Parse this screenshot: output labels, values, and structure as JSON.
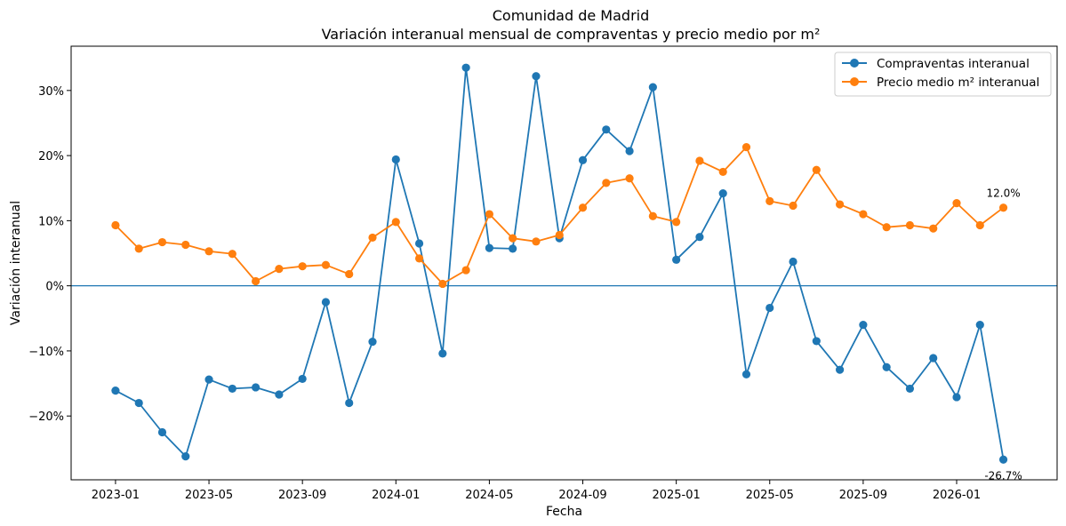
{
  "title": {
    "line1": "Comunidad de Madrid",
    "line2": "Variación interanual mensual de compraventas y precio medio por m²"
  },
  "chart_data": {
    "type": "line",
    "title": "Comunidad de Madrid / Variación interanual mensual de compraventas y precio medio por m²",
    "xlabel": "Fecha",
    "ylabel": "Variación interanual",
    "x": [
      "2023-01",
      "2023-02",
      "2023-03",
      "2023-04",
      "2023-05",
      "2023-06",
      "2023-07",
      "2023-08",
      "2023-09",
      "2023-10",
      "2023-11",
      "2023-12",
      "2024-01",
      "2024-02",
      "2024-03",
      "2024-04",
      "2024-05",
      "2024-06",
      "2024-07",
      "2024-08",
      "2024-09",
      "2024-10",
      "2024-11",
      "2024-12",
      "2025-01",
      "2025-02",
      "2025-03",
      "2025-04",
      "2025-05",
      "2025-06",
      "2025-07",
      "2025-08",
      "2025-09",
      "2025-10",
      "2025-11",
      "2025-12",
      "2026-01",
      "2026-02",
      "2026-03"
    ],
    "x_ticks": [
      "2023-01",
      "2023-05",
      "2023-09",
      "2024-01",
      "2024-05",
      "2024-09",
      "2025-01",
      "2025-05",
      "2025-09",
      "2026-01"
    ],
    "y_ticks": [
      -20,
      -10,
      0,
      10,
      20,
      30
    ],
    "y_tick_labels": [
      "−20%",
      "−10%",
      "0%",
      "10%",
      "20%",
      "30%"
    ],
    "ylim": [
      -29.8,
      36.8
    ],
    "x_range_months": [
      -1.9,
      40.3
    ],
    "reference_line": 0,
    "grid": false,
    "legend_position": "top-right",
    "series": [
      {
        "name": "Compraventas interanual",
        "color": "#1f77b4",
        "values": [
          -16.1,
          -18.0,
          -22.5,
          -26.2,
          -14.4,
          -15.8,
          -15.6,
          -16.7,
          -14.3,
          -2.5,
          -18.0,
          -8.6,
          19.4,
          6.5,
          -10.4,
          33.5,
          5.8,
          5.7,
          32.2,
          7.3,
          19.3,
          24.0,
          20.7,
          30.5,
          4.0,
          7.5,
          14.2,
          -13.6,
          -3.4,
          3.7,
          -8.5,
          -12.9,
          -6.0,
          -12.5,
          -15.8,
          -11.1,
          -17.1,
          -6.0,
          -26.7
        ]
      },
      {
        "name": "Precio medio m² interanual",
        "color": "#ff7f0e",
        "values": [
          9.3,
          5.7,
          6.7,
          6.3,
          5.3,
          4.9,
          0.7,
          2.6,
          3.0,
          3.2,
          1.8,
          7.4,
          9.8,
          4.2,
          0.3,
          2.4,
          11.0,
          7.3,
          6.8,
          7.8,
          12.0,
          15.8,
          16.5,
          10.7,
          9.8,
          19.2,
          17.5,
          21.3,
          13.0,
          12.3,
          17.8,
          12.5,
          11.0,
          9.0,
          9.3,
          8.8,
          12.7,
          9.3,
          12.0
        ]
      }
    ],
    "annotations": [
      {
        "text": "12.0%",
        "series": 1,
        "index": 38,
        "position": "above"
      },
      {
        "text": "-26.7%",
        "series": 0,
        "index": 38,
        "position": "below"
      }
    ]
  }
}
